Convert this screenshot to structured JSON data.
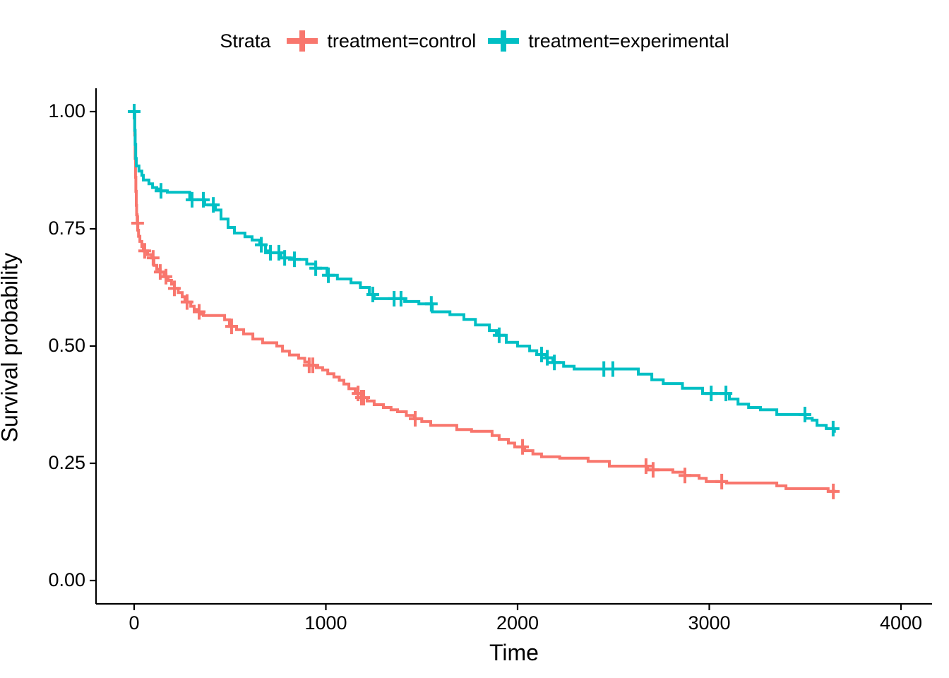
{
  "figure": {
    "legend": {
      "title": "Strata",
      "items": [
        {
          "label": "treatment=control",
          "color": "#F8766D"
        },
        {
          "label": "treatment=experimental",
          "color": "#00BFC4"
        }
      ]
    },
    "x_axis": {
      "title": "Time",
      "ticks": [
        "0",
        "1000",
        "2000",
        "3000",
        "4000"
      ],
      "tick_values": [
        0,
        1000,
        2000,
        3000,
        4000
      ]
    },
    "y_axis": {
      "title": "Survival probability",
      "ticks": [
        "1.00",
        "0.75",
        "0.50",
        "0.25",
        "0.00"
      ],
      "tick_values": [
        1,
        0.75,
        0.5,
        0.25,
        0
      ]
    },
    "colors": {
      "axis": "#000000",
      "text": "#000000",
      "background": "#FFFFFF"
    }
  },
  "chart_data": {
    "type": "line",
    "subtype": "kaplan-meier-step",
    "title": "",
    "xlabel": "Time",
    "ylabel": "Survival probability",
    "xlim": [
      0,
      4000
    ],
    "ylim": [
      0,
      1
    ],
    "grid": false,
    "legend_position": "top",
    "legend_title": "Strata",
    "end_time": 3660,
    "series": [
      {
        "name": "treatment=control",
        "color": "#F8766D",
        "steps": [
          [
            0,
            1.0
          ],
          [
            3,
            0.95
          ],
          [
            5,
            0.9
          ],
          [
            7,
            0.86
          ],
          [
            9,
            0.83
          ],
          [
            11,
            0.8
          ],
          [
            13,
            0.78
          ],
          [
            16,
            0.762
          ],
          [
            19,
            0.747
          ],
          [
            23,
            0.734
          ],
          [
            30,
            0.723
          ],
          [
            40,
            0.712
          ],
          [
            48,
            0.703
          ],
          [
            70,
            0.695
          ],
          [
            92,
            0.688
          ],
          [
            103,
            0.672
          ],
          [
            118,
            0.664
          ],
          [
            136,
            0.658
          ],
          [
            155,
            0.652
          ],
          [
            166,
            0.648
          ],
          [
            177,
            0.64
          ],
          [
            195,
            0.632
          ],
          [
            210,
            0.623
          ],
          [
            230,
            0.614
          ],
          [
            251,
            0.605
          ],
          [
            265,
            0.599
          ],
          [
            276,
            0.594
          ],
          [
            295,
            0.585
          ],
          [
            313,
            0.578
          ],
          [
            330,
            0.573
          ],
          [
            350,
            0.568
          ],
          [
            361,
            0.565
          ],
          [
            472,
            0.556
          ],
          [
            497,
            0.542
          ],
          [
            534,
            0.535
          ],
          [
            571,
            0.526
          ],
          [
            619,
            0.515
          ],
          [
            670,
            0.507
          ],
          [
            744,
            0.5
          ],
          [
            774,
            0.489
          ],
          [
            810,
            0.481
          ],
          [
            858,
            0.474
          ],
          [
            890,
            0.466
          ],
          [
            913,
            0.459
          ],
          [
            950,
            0.454
          ],
          [
            983,
            0.449
          ],
          [
            1010,
            0.441
          ],
          [
            1042,
            0.434
          ],
          [
            1070,
            0.427
          ],
          [
            1094,
            0.419
          ],
          [
            1120,
            0.409
          ],
          [
            1153,
            0.399
          ],
          [
            1186,
            0.39
          ],
          [
            1215,
            0.383
          ],
          [
            1252,
            0.375
          ],
          [
            1300,
            0.369
          ],
          [
            1340,
            0.364
          ],
          [
            1374,
            0.36
          ],
          [
            1420,
            0.352
          ],
          [
            1462,
            0.345
          ],
          [
            1500,
            0.339
          ],
          [
            1547,
            0.331
          ],
          [
            1683,
            0.322
          ],
          [
            1760,
            0.318
          ],
          [
            1867,
            0.309
          ],
          [
            1904,
            0.301
          ],
          [
            1952,
            0.293
          ],
          [
            1985,
            0.285
          ],
          [
            2037,
            0.277
          ],
          [
            2080,
            0.27
          ],
          [
            2125,
            0.264
          ],
          [
            2220,
            0.261
          ],
          [
            2368,
            0.254
          ],
          [
            2479,
            0.244
          ],
          [
            2678,
            0.236
          ],
          [
            2810,
            0.231
          ],
          [
            2873,
            0.224
          ],
          [
            2947,
            0.218
          ],
          [
            2984,
            0.211
          ],
          [
            3090,
            0.208
          ],
          [
            3352,
            0.202
          ],
          [
            3400,
            0.196
          ],
          [
            3620,
            0.19
          ]
        ],
        "censor_times": [
          18,
          55,
          99,
          136,
          166,
          210,
          276,
          339,
          508,
          913,
          932,
          1168,
          1186,
          1197,
          1466,
          2026,
          2670,
          2707,
          2873,
          3065,
          3647
        ]
      },
      {
        "name": "treatment=experimental",
        "color": "#00BFC4",
        "steps": [
          [
            0,
            1.0
          ],
          [
            3,
            0.96
          ],
          [
            5,
            0.93
          ],
          [
            8,
            0.9
          ],
          [
            11,
            0.884
          ],
          [
            25,
            0.873
          ],
          [
            40,
            0.864
          ],
          [
            48,
            0.854
          ],
          [
            77,
            0.846
          ],
          [
            96,
            0.838
          ],
          [
            118,
            0.835
          ],
          [
            140,
            0.831
          ],
          [
            173,
            0.828
          ],
          [
            290,
            0.812
          ],
          [
            368,
            0.801
          ],
          [
            424,
            0.79
          ],
          [
            453,
            0.771
          ],
          [
            490,
            0.753
          ],
          [
            523,
            0.741
          ],
          [
            578,
            0.733
          ],
          [
            615,
            0.726
          ],
          [
            655,
            0.716
          ],
          [
            685,
            0.703
          ],
          [
            711,
            0.699
          ],
          [
            766,
            0.688
          ],
          [
            821,
            0.685
          ],
          [
            900,
            0.675
          ],
          [
            947,
            0.666
          ],
          [
            1006,
            0.651
          ],
          [
            1060,
            0.643
          ],
          [
            1131,
            0.635
          ],
          [
            1180,
            0.625
          ],
          [
            1227,
            0.61
          ],
          [
            1252,
            0.601
          ],
          [
            1411,
            0.595
          ],
          [
            1485,
            0.59
          ],
          [
            1555,
            0.573
          ],
          [
            1647,
            0.567
          ],
          [
            1720,
            0.557
          ],
          [
            1780,
            0.545
          ],
          [
            1853,
            0.533
          ],
          [
            1890,
            0.523
          ],
          [
            1941,
            0.508
          ],
          [
            2000,
            0.5
          ],
          [
            2063,
            0.49
          ],
          [
            2100,
            0.482
          ],
          [
            2150,
            0.475
          ],
          [
            2184,
            0.465
          ],
          [
            2240,
            0.457
          ],
          [
            2295,
            0.451
          ],
          [
            2630,
            0.44
          ],
          [
            2700,
            0.428
          ],
          [
            2760,
            0.42
          ],
          [
            2860,
            0.41
          ],
          [
            2965,
            0.399
          ],
          [
            3105,
            0.387
          ],
          [
            3150,
            0.376
          ],
          [
            3205,
            0.369
          ],
          [
            3267,
            0.364
          ],
          [
            3352,
            0.354
          ],
          [
            3500,
            0.346
          ],
          [
            3537,
            0.342
          ],
          [
            3562,
            0.331
          ],
          [
            3610,
            0.324
          ],
          [
            3648,
            0.318
          ]
        ],
        "censor_times": [
          0,
          140,
          302,
          361,
          413,
          663,
          711,
          755,
          785,
          836,
          947,
          1013,
          1245,
          1356,
          1392,
          1550,
          1904,
          2125,
          2155,
          2192,
          2450,
          2497,
          3010,
          3087,
          3499,
          3646
        ]
      }
    ]
  }
}
